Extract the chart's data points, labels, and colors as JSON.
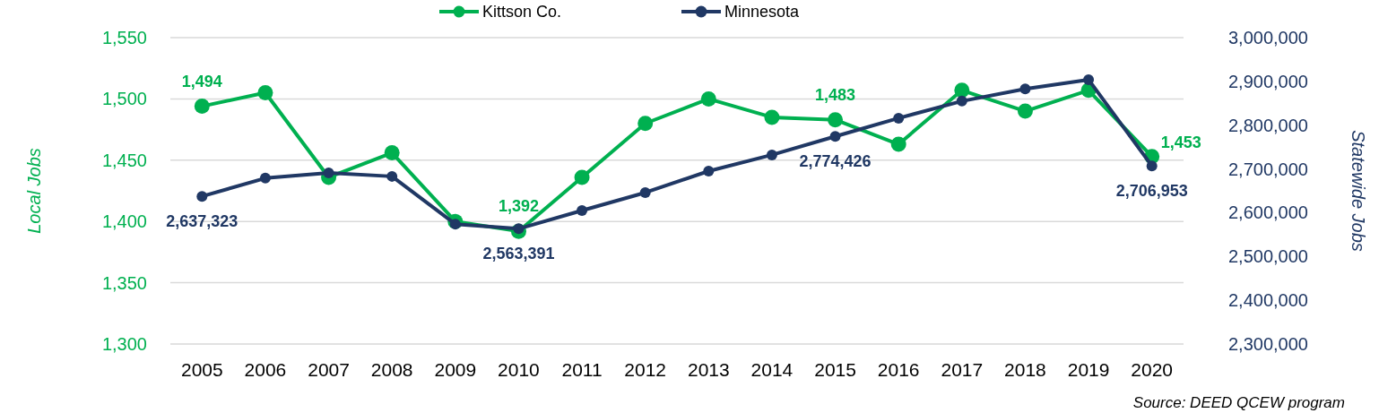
{
  "chart_data": {
    "type": "line",
    "categories": [
      "2005",
      "2006",
      "2007",
      "2008",
      "2009",
      "2010",
      "2011",
      "2012",
      "2013",
      "2014",
      "2015",
      "2016",
      "2017",
      "2018",
      "2019",
      "2020"
    ],
    "ylabel": "Local Jobs",
    "y2label": "Statewide Jobs",
    "ylim": [
      1300,
      1550
    ],
    "yticks": [
      {
        "value": 1300,
        "label": "1,300"
      },
      {
        "value": 1350,
        "label": "1,350"
      },
      {
        "value": 1400,
        "label": "1,400"
      },
      {
        "value": 1450,
        "label": "1,450"
      },
      {
        "value": 1500,
        "label": "1,500"
      },
      {
        "value": 1550,
        "label": "1,550"
      }
    ],
    "y2lim": [
      2300000,
      3000000
    ],
    "y2ticks": [
      {
        "value": 2300000,
        "label": "2,300,000"
      },
      {
        "value": 2400000,
        "label": "2,400,000"
      },
      {
        "value": 2500000,
        "label": "2,500,000"
      },
      {
        "value": 2600000,
        "label": "2,600,000"
      },
      {
        "value": 2700000,
        "label": "2,700,000"
      },
      {
        "value": 2800000,
        "label": "2,800,000"
      },
      {
        "value": 2900000,
        "label": "2,900,000"
      },
      {
        "value": 3000000,
        "label": "3,000,000"
      }
    ],
    "series": [
      {
        "name": "Kittson Co.",
        "color": "#00b050",
        "values": [
          1494,
          1505,
          1436,
          1456,
          1400,
          1392,
          1436,
          1480,
          1500,
          1485,
          1483,
          1463,
          1507,
          1490,
          1507,
          1453
        ],
        "value_labels": [
          "1,494",
          null,
          null,
          null,
          null,
          "1,392",
          null,
          null,
          null,
          null,
          "1,483",
          null,
          null,
          null,
          null,
          "1,453"
        ]
      },
      {
        "name": "Minnesota",
        "color": "#203864",
        "axis": "y2",
        "values": [
          2637323,
          2679000,
          2691000,
          2683000,
          2574000,
          2563391,
          2605000,
          2646000,
          2695000,
          2732000,
          2774426,
          2816000,
          2855000,
          2883000,
          2904000,
          2706953
        ],
        "value_labels": [
          "2,637,323",
          null,
          null,
          null,
          null,
          "2,563,391",
          null,
          null,
          null,
          null,
          "2,774,426",
          null,
          null,
          null,
          null,
          "2,706,953"
        ]
      }
    ],
    "grid": "y",
    "legend": "top",
    "marker": "circle",
    "line_style": "solid",
    "annotations": [
      "Source: DEED QCEW program"
    ]
  }
}
